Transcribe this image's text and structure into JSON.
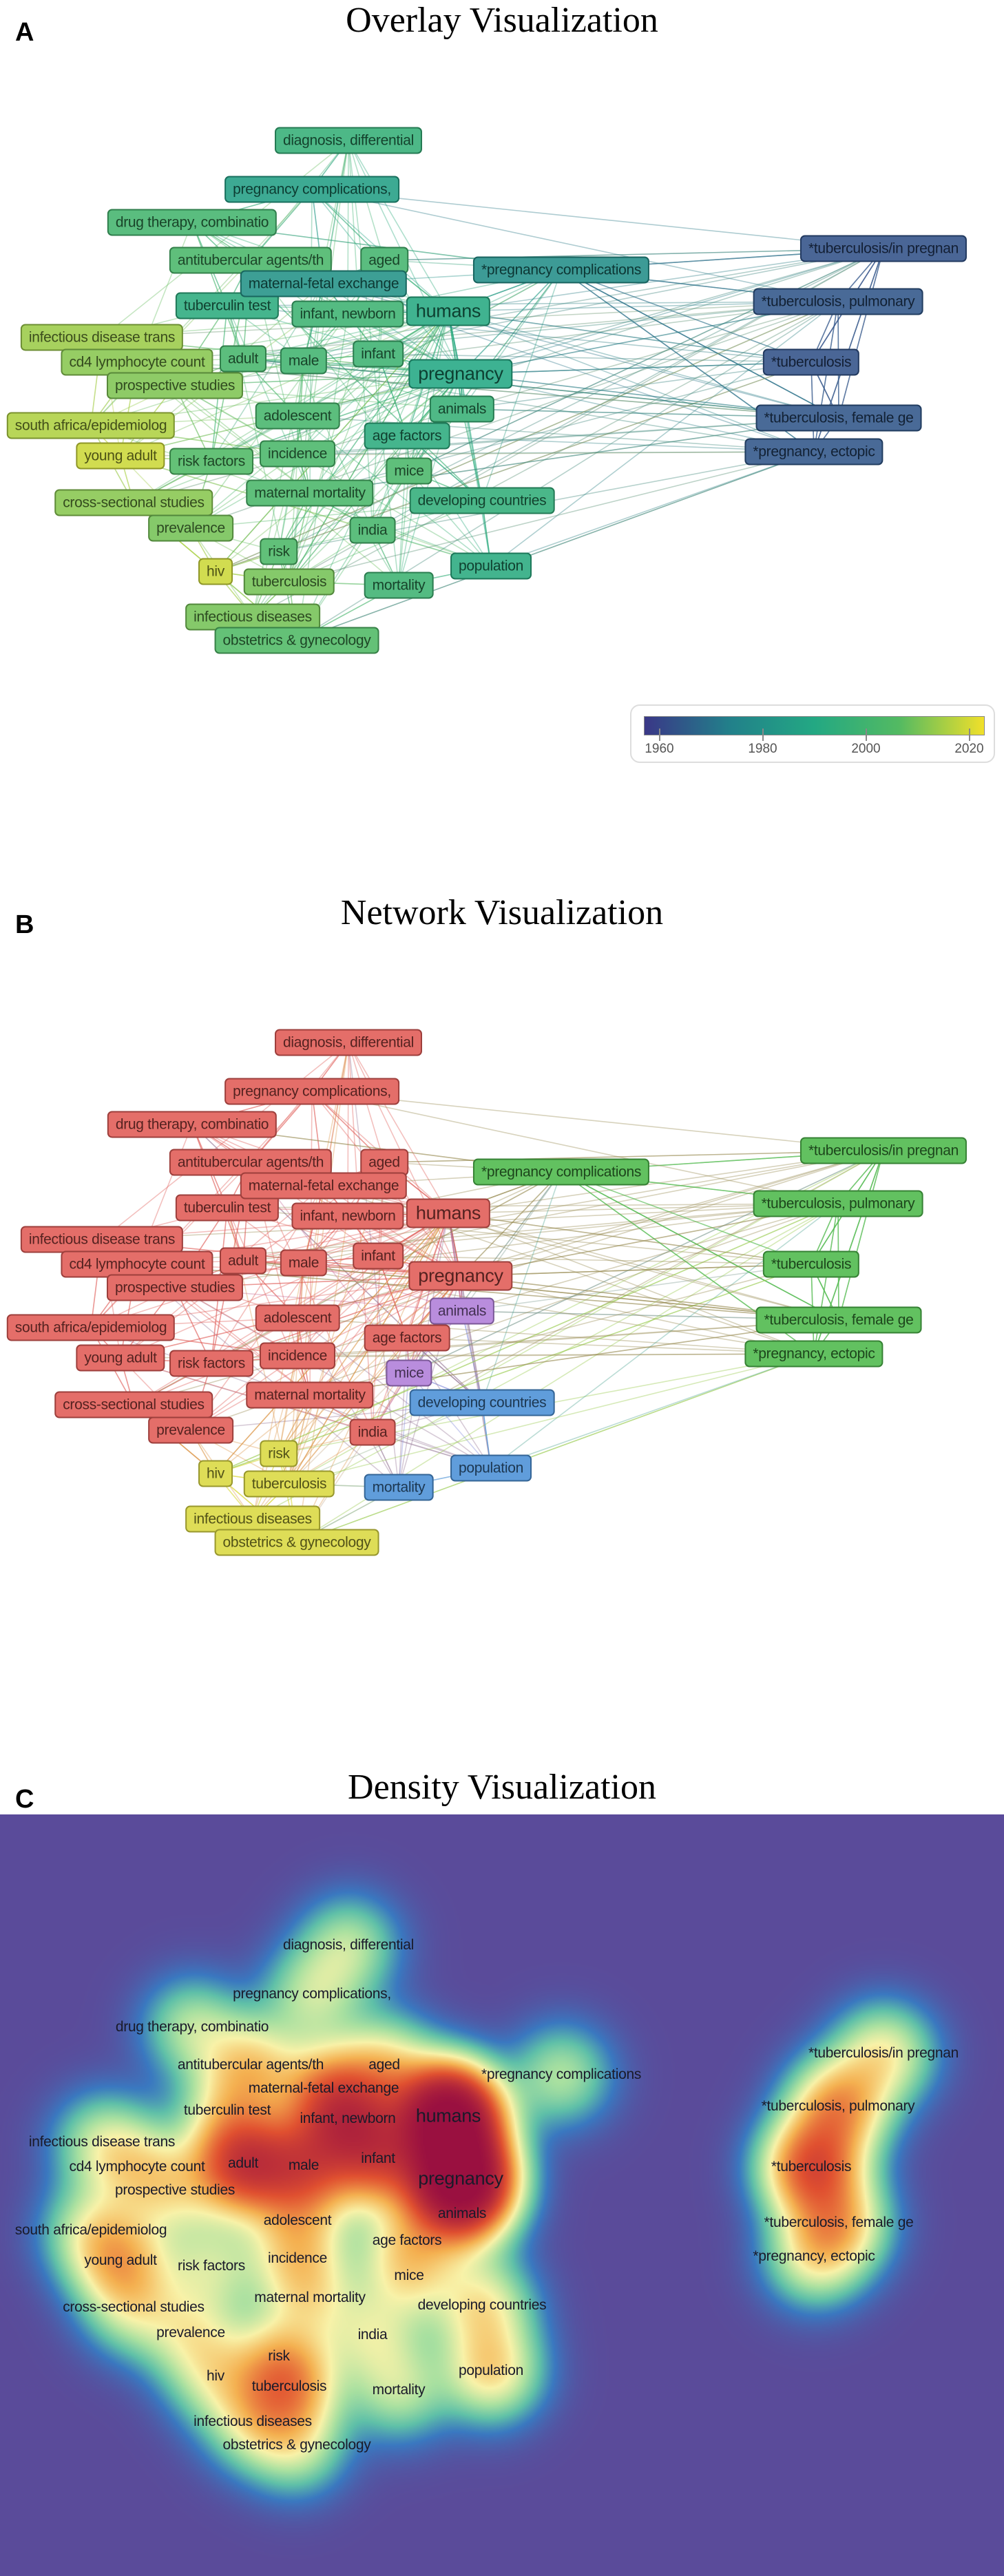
{
  "panels": {
    "a": {
      "letter": "A",
      "title": "Overlay Visualization"
    },
    "b": {
      "letter": "B",
      "title": "Network Visualization"
    },
    "c": {
      "letter": "C",
      "title": "Density Visualization"
    }
  },
  "legend": {
    "ticks": [
      "1960",
      "1980",
      "2000",
      "2020"
    ],
    "range": [
      1957,
      2023
    ],
    "colormap": [
      "#3a3787",
      "#22808a",
      "#23a883",
      "#53ba62",
      "#f1e02a"
    ]
  },
  "cluster_colors": {
    "red": "#e05a55",
    "green": "#4db84a",
    "blue": "#4a90d6",
    "yellow": "#d9d840",
    "purple": "#b07ed8"
  },
  "density_background": "#5a4b9a",
  "nodes": [
    {
      "label": "diagnosis, differential",
      "cluster": "red",
      "avg_year": 1996
    },
    {
      "label": "pregnancy complications,",
      "cluster": "red",
      "avg_year": 1986
    },
    {
      "label": "drug therapy, combinatio",
      "cluster": "red",
      "avg_year": 2001
    },
    {
      "label": "antitubercular agents/th",
      "cluster": "red",
      "avg_year": 2003
    },
    {
      "label": "aged",
      "cluster": "red",
      "avg_year": 2001
    },
    {
      "label": "*pregnancy complications",
      "cluster": "green",
      "avg_year": 1979
    },
    {
      "label": "tuberculin test",
      "cluster": "red",
      "avg_year": 1993
    },
    {
      "label": "infant, newborn",
      "cluster": "red",
      "avg_year": 1999
    },
    {
      "label": "maternal-fetal exchange",
      "cluster": "red",
      "avg_year": 1981
    },
    {
      "label": "humans",
      "cluster": "red",
      "avg_year": 1991
    },
    {
      "label": "*tuberculosis/in pregnan",
      "cluster": "green",
      "avg_year": 1963
    },
    {
      "label": "*tuberculosis, pulmonary",
      "cluster": "green",
      "avg_year": 1964
    },
    {
      "label": "infectious disease trans",
      "cluster": "red",
      "avg_year": 2014
    },
    {
      "label": "cd4 lymphocyte count",
      "cluster": "red",
      "avg_year": 2012
    },
    {
      "label": "adult",
      "cluster": "red",
      "avg_year": 2002
    },
    {
      "label": "male",
      "cluster": "red",
      "avg_year": 2000
    },
    {
      "label": "infant",
      "cluster": "red",
      "avg_year": 1999
    },
    {
      "label": "pregnancy",
      "cluster": "red",
      "avg_year": 1990
    },
    {
      "label": "*tuberculosis",
      "cluster": "green",
      "avg_year": 1963
    },
    {
      "label": "prospective studies",
      "cluster": "red",
      "avg_year": 2011
    },
    {
      "label": "adolescent",
      "cluster": "red",
      "avg_year": 2002
    },
    {
      "label": "animals",
      "cluster": "purple",
      "avg_year": 1997
    },
    {
      "label": "south africa/epidemiolog",
      "cluster": "red",
      "avg_year": 2016
    },
    {
      "label": "*tuberculosis, female ge",
      "cluster": "green",
      "avg_year": 1964
    },
    {
      "label": "age factors",
      "cluster": "red",
      "avg_year": 1993
    },
    {
      "label": "*pregnancy, ectopic",
      "cluster": "green",
      "avg_year": 1964
    },
    {
      "label": "incidence",
      "cluster": "red",
      "avg_year": 2003
    },
    {
      "label": "young adult",
      "cluster": "red",
      "avg_year": 2019
    },
    {
      "label": "risk factors",
      "cluster": "red",
      "avg_year": 2005
    },
    {
      "label": "mice",
      "cluster": "purple",
      "avg_year": 2003
    },
    {
      "label": "maternal mortality",
      "cluster": "red",
      "avg_year": 2003
    },
    {
      "label": "developing countries",
      "cluster": "blue",
      "avg_year": 1995
    },
    {
      "label": "cross-sectional studies",
      "cluster": "red",
      "avg_year": 2012
    },
    {
      "label": "prevalence",
      "cluster": "red",
      "avg_year": 2010
    },
    {
      "label": "india",
      "cluster": "red",
      "avg_year": 2002
    },
    {
      "label": "risk",
      "cluster": "yellow",
      "avg_year": 2004
    },
    {
      "label": "population",
      "cluster": "blue",
      "avg_year": 1992
    },
    {
      "label": "hiv",
      "cluster": "yellow",
      "avg_year": 2019
    },
    {
      "label": "tuberculosis",
      "cluster": "yellow",
      "avg_year": 2010
    },
    {
      "label": "mortality",
      "cluster": "blue",
      "avg_year": 1999
    },
    {
      "label": "infectious diseases",
      "cluster": "yellow",
      "avg_year": 2010
    },
    {
      "label": "obstetrics & gynecology",
      "cluster": "yellow",
      "avg_year": 2005
    }
  ]
}
